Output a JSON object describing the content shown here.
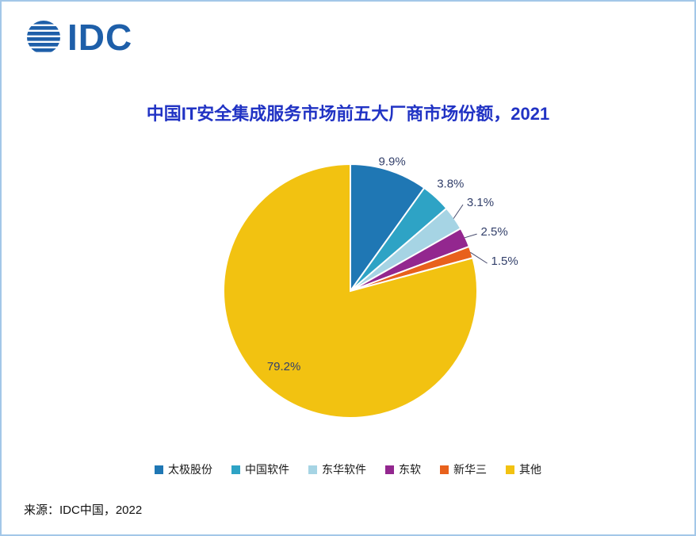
{
  "logo": {
    "text": "IDC"
  },
  "chart_data": {
    "type": "pie",
    "title": "中国IT安全集成服务市场前五大厂商市场份额，2021",
    "categories": [
      "太极股份",
      "中国软件",
      "东华软件",
      "东软",
      "新华三",
      "其他"
    ],
    "values": [
      9.9,
      3.8,
      3.1,
      2.5,
      1.5,
      79.2
    ],
    "labels": [
      "9.9%",
      "3.8%",
      "3.1%",
      "2.5%",
      "1.5%",
      "79.2%"
    ],
    "colors": [
      "#1f77b4",
      "#2ea3c5",
      "#a6d4e4",
      "#93278f",
      "#e8611c",
      "#f2c211"
    ],
    "start_angle_deg": 0,
    "direction": "clockwise",
    "legend_position": "bottom",
    "title_color": "#2133c4",
    "label_color": "#33406b",
    "border_color": "#a3c7e8",
    "logo_color": "#1e5fa9"
  },
  "source": {
    "text": "来源：IDC中国，2022"
  }
}
